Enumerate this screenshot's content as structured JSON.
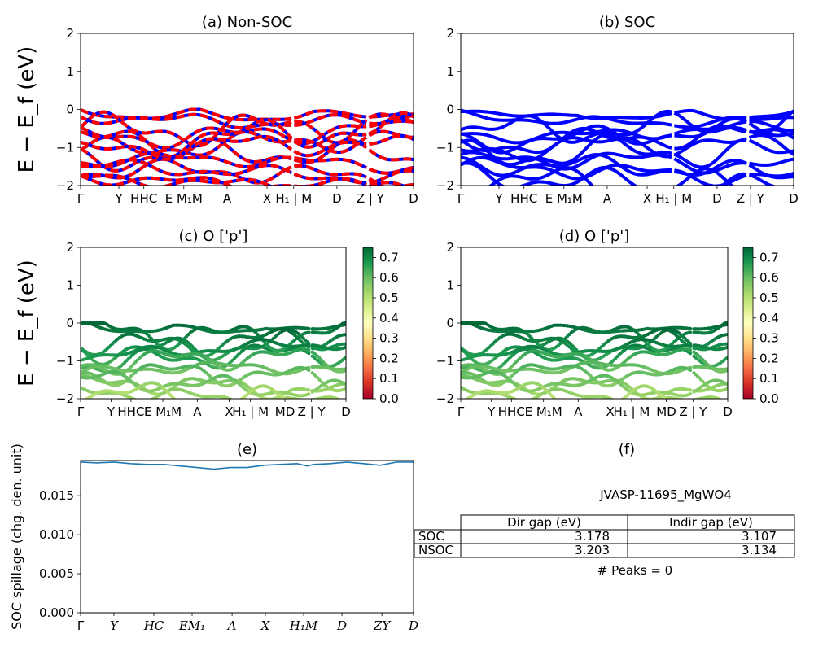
{
  "figure": {
    "material_label": "JVASP-11695_MgWO4",
    "peaks_label": "# Peaks = 0"
  },
  "colors": {
    "nsoc_overlay": "#ff0000",
    "soc_line": "#0000ff",
    "spillage_line": "#1f77b4",
    "colormap": [
      "#a50026",
      "#d73027",
      "#f46d43",
      "#fdae61",
      "#fee08b",
      "#ffffbf",
      "#d9ef8b",
      "#a6d96a",
      "#66bd63",
      "#1a9850",
      "#006837"
    ]
  },
  "chart_data": [
    {
      "id": "a",
      "type": "line",
      "title": "(a) Non-SOC",
      "ylabel": "E − E_f (eV)",
      "ylim": [
        -2,
        2
      ],
      "yticks": [
        "−2",
        "−1",
        "0",
        "1",
        "2"
      ],
      "xticks": [
        "Γ",
        "Y",
        "HHC",
        "E M₁M",
        "A",
        "X",
        "H₁ | M",
        "D",
        "Z | Y",
        "D"
      ],
      "grid": false,
      "bands_at_start": [
        0.0,
        -0.58,
        -0.95,
        -1.3,
        -1.75,
        -1.95
      ],
      "series": [
        {
          "name": "",
          "style": "red dashes over blue"
        }
      ]
    },
    {
      "id": "b",
      "type": "line",
      "title": "(b) SOC",
      "ylim": [
        -2,
        2
      ],
      "yticks": [
        "−2",
        "−1",
        "0",
        "1",
        "2"
      ],
      "xticks": [
        "Γ",
        "Y",
        "HHC",
        "E M₁M",
        "A",
        "X",
        "H₁ | M",
        "D",
        "Z | Y",
        "D"
      ],
      "grid": false,
      "bands_at_start": [
        0.0,
        -0.55,
        -0.82,
        -1.25,
        -1.6,
        -1.9
      ]
    },
    {
      "id": "c",
      "type": "scatter",
      "title": "(c)  O ['p']",
      "ylabel": "E − E_f (eV)",
      "ylim": [
        -2,
        2
      ],
      "yticks": [
        "−2",
        "−1",
        "0",
        "1",
        "2"
      ],
      "xticks": [
        "Γ",
        "Y",
        "HHC",
        "E M₁M",
        "A",
        "X",
        "H₁ | M",
        "MD",
        "Z | Y",
        "D"
      ],
      "colorbar": {
        "min": 0.0,
        "max": 0.75,
        "ticks": [
          "0.0",
          "0.1",
          "0.2",
          "0.3",
          "0.4",
          "0.5",
          "0.6",
          "0.7"
        ]
      }
    },
    {
      "id": "d",
      "type": "scatter",
      "title": "(d) O ['p']",
      "ylim": [
        -2,
        2
      ],
      "yticks": [
        "−2",
        "−1",
        "0",
        "1",
        "2"
      ],
      "xticks": [
        "Γ",
        "Y",
        "HHC",
        "E M₁M",
        "A",
        "X",
        "H₁ | M",
        "MD",
        "Z | Y",
        "D"
      ],
      "colorbar": {
        "min": 0.0,
        "max": 0.75,
        "ticks": [
          "0.0",
          "0.1",
          "0.2",
          "0.3",
          "0.4",
          "0.5",
          "0.6",
          "0.7"
        ]
      }
    },
    {
      "id": "e",
      "type": "line",
      "title": "(e)",
      "ylabel": "SOC spillage (chg. den. unit)",
      "ylim": [
        0,
        0.0195
      ],
      "yticks": [
        "0.000",
        "0.005",
        "0.010",
        "0.015"
      ],
      "xticks": [
        "Γ",
        "Y",
        "HC",
        "EM₁",
        "A",
        "X",
        "H₁M",
        "D",
        "ZY",
        "D"
      ],
      "series": [
        {
          "name": "",
          "x": [
            0,
            0.05,
            0.1,
            0.15,
            0.2,
            0.25,
            0.3,
            0.35,
            0.4,
            0.45,
            0.5,
            0.55,
            0.6,
            0.65,
            0.68,
            0.7,
            0.75,
            0.8,
            0.85,
            0.9,
            0.95,
            1.0
          ],
          "values": [
            0.0193,
            0.0192,
            0.0193,
            0.0191,
            0.019,
            0.019,
            0.0188,
            0.0186,
            0.0184,
            0.0186,
            0.0186,
            0.0189,
            0.019,
            0.0191,
            0.0188,
            0.019,
            0.0191,
            0.0193,
            0.0191,
            0.0189,
            0.0193,
            0.0193
          ]
        }
      ]
    },
    {
      "id": "f",
      "type": "table",
      "title": "(f)",
      "columns": [
        "",
        "Dir gap (eV)",
        "Indir gap (eV)"
      ],
      "rows": [
        [
          "SOC",
          "3.178",
          "3.107"
        ],
        [
          "NSOC",
          "3.203",
          "3.134"
        ]
      ]
    }
  ]
}
